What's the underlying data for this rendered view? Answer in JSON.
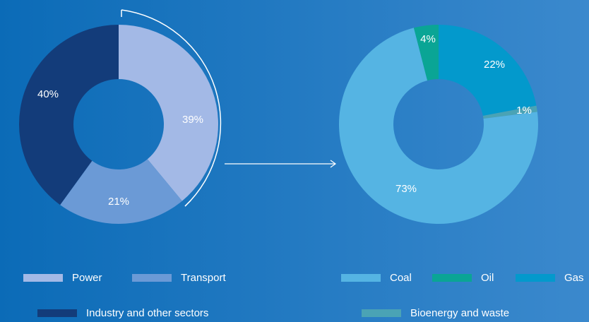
{
  "chart_data": [
    {
      "type": "pie",
      "categories": [
        "Power",
        "Transport",
        "Industry and other sectors"
      ],
      "values": [
        39,
        21,
        40
      ],
      "value_labels": [
        "39%",
        "21%",
        "40%"
      ],
      "colors": [
        "#a3b9e6",
        "#6b9ad6",
        "#133c7a"
      ]
    },
    {
      "type": "pie",
      "categories": [
        "Gas",
        "Bioenergy and waste",
        "Coal",
        "Oil"
      ],
      "values": [
        22,
        1,
        73,
        4
      ],
      "value_labels": [
        "22%",
        "1%",
        "73%",
        "4%"
      ],
      "colors": [
        "#0399cc",
        "#4aa3b5",
        "#55b4e3",
        "#0aa595"
      ]
    }
  ]
}
